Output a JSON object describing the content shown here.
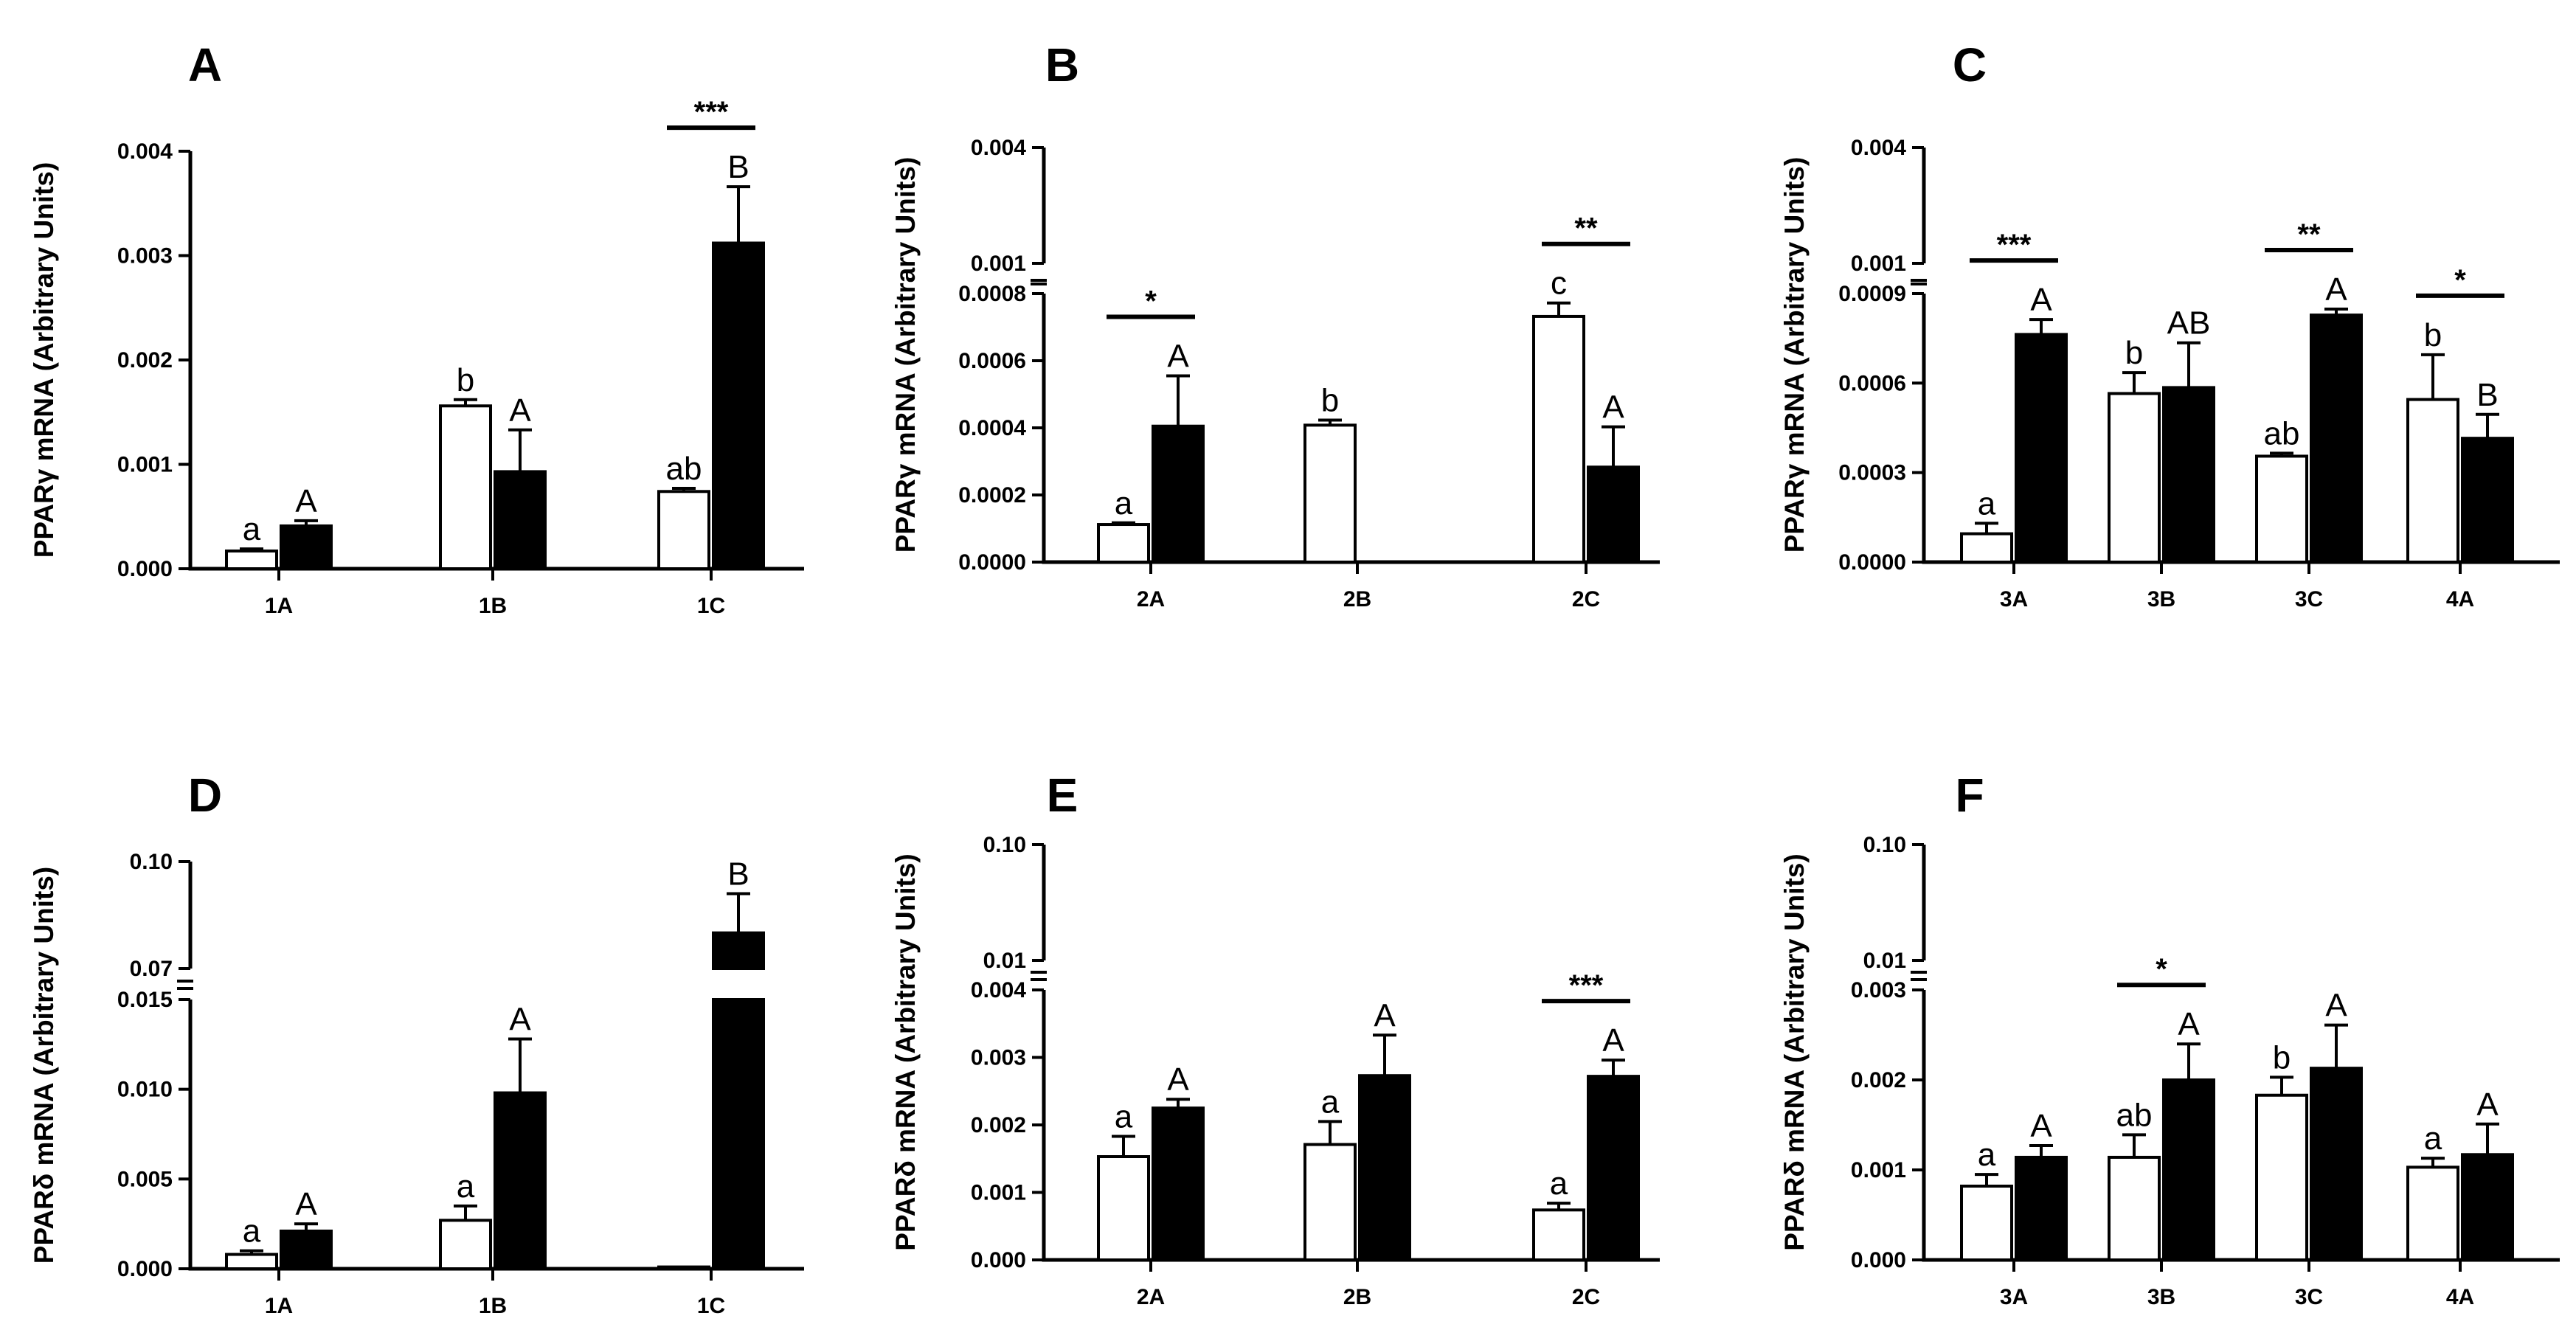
{
  "colors": {
    "control": "#ffffff",
    "treated": "#000000",
    "stroke": "#000000"
  },
  "chart_data": [
    {
      "type": "bar",
      "panel": "A",
      "ylabel": "PPARγ mRNA (Arbitrary Units)",
      "categories": [
        "1A",
        "1B",
        "1C"
      ],
      "series": [
        {
          "name": "open",
          "values": [
            0.00017,
            0.00156,
            0.00074
          ],
          "errors": [
            2e-05,
            6e-05,
            3e-05
          ],
          "labels": [
            "a",
            "b",
            "ab"
          ]
        },
        {
          "name": "filled",
          "values": [
            0.00041,
            0.00093,
            0.00312
          ],
          "errors": [
            5e-05,
            0.0004,
            0.00054
          ],
          "labels": [
            "A",
            "A",
            "B"
          ]
        }
      ],
      "ylim": [
        0,
        0.004
      ],
      "yticks": [
        {
          "v": 0,
          "l": "0.000"
        },
        {
          "v": 0.001,
          "l": "0.001"
        },
        {
          "v": 0.002,
          "l": "0.002"
        },
        {
          "v": 0.003,
          "l": "0.003"
        },
        {
          "v": 0.004,
          "l": "0.004"
        }
      ],
      "significance": [
        {
          "category": 2,
          "text": "***"
        }
      ]
    },
    {
      "type": "bar",
      "panel": "B",
      "ylabel": "PPARγ mRNA (Arbitrary Units)",
      "categories": [
        "2A",
        "2B",
        "2C"
      ],
      "series": [
        {
          "name": "open",
          "values": [
            0.000112,
            0.000408,
            0.000732
          ],
          "errors": [
            5e-06,
            1.5e-05,
            4e-05
          ],
          "labels": [
            "a",
            "b",
            "c"
          ]
        },
        {
          "name": "filled",
          "values": [
            0.000405,
            null,
            0.000283
          ],
          "errors": [
            0.00015,
            null,
            0.00012
          ],
          "labels": [
            "A",
            "",
            "A"
          ]
        }
      ],
      "ylim": [
        0,
        0.004
      ],
      "broken_axis": {
        "lower": [
          0,
          0.0008
        ],
        "upper": [
          0.001,
          0.004
        ]
      },
      "yticks": [
        {
          "v": 0,
          "l": "0.0000"
        },
        {
          "v": 0.0002,
          "l": "0.0002"
        },
        {
          "v": 0.0004,
          "l": "0.0004"
        },
        {
          "v": 0.0006,
          "l": "0.0006"
        },
        {
          "v": 0.0008,
          "l": "0.0008"
        },
        {
          "v": 0.001,
          "l": "0.001"
        },
        {
          "v": 0.004,
          "l": "0.004"
        }
      ],
      "significance": [
        {
          "category": 0,
          "text": "*"
        },
        {
          "category": 2,
          "text": "**"
        }
      ]
    },
    {
      "type": "bar",
      "panel": "C",
      "ylabel": "PPARγ mRNA (Arbitrary Units)",
      "categories": [
        "3A",
        "3B",
        "3C",
        "4A"
      ],
      "series": [
        {
          "name": "open",
          "values": [
            9.5e-05,
            0.000565,
            0.000355,
            0.000545
          ],
          "errors": [
            3.5e-05,
            7e-05,
            1e-05,
            0.00015
          ],
          "labels": [
            "a",
            "b",
            "ab",
            "b"
          ]
        },
        {
          "name": "filled",
          "values": [
            0.000763,
            0.000585,
            0.000828,
            0.000415
          ],
          "errors": [
            5e-05,
            0.00015,
            2e-05,
            8e-05
          ],
          "labels": [
            "A",
            "AB",
            "A",
            "B"
          ]
        }
      ],
      "ylim": [
        0,
        0.004
      ],
      "broken_axis": {
        "lower": [
          0,
          0.0009
        ],
        "upper": [
          0.001,
          0.004
        ]
      },
      "yticks": [
        {
          "v": 0,
          "l": "0.0000"
        },
        {
          "v": 0.0003,
          "l": "0.0003"
        },
        {
          "v": 0.0006,
          "l": "0.0006"
        },
        {
          "v": 0.0009,
          "l": "0.0009"
        },
        {
          "v": 0.001,
          "l": "0.001"
        },
        {
          "v": 0.004,
          "l": "0.004"
        }
      ],
      "significance": [
        {
          "category": 0,
          "text": "***"
        },
        {
          "category": 2,
          "text": "**"
        },
        {
          "category": 3,
          "text": "*"
        }
      ]
    },
    {
      "type": "bar",
      "panel": "D",
      "ylabel": "PPARδ mRNA (Arbitrary Units)",
      "categories": [
        "1A",
        "1B",
        "1C"
      ],
      "series": [
        {
          "name": "open",
          "values": [
            0.0008,
            0.0027,
            0.0001
          ],
          "errors": [
            0.0002,
            0.0008,
            0.0
          ],
          "labels": [
            "a",
            "a",
            ""
          ]
        },
        {
          "name": "filled",
          "values": [
            0.0021,
            0.0098,
            0.08
          ],
          "errors": [
            0.0004,
            0.003,
            0.011
          ],
          "labels": [
            "A",
            "A",
            "B"
          ]
        }
      ],
      "ylim": [
        0,
        0.1
      ],
      "broken_axis": {
        "lower": [
          0,
          0.015
        ],
        "upper": [
          0.07,
          0.1
        ]
      },
      "yticks": [
        {
          "v": 0,
          "l": "0.000"
        },
        {
          "v": 0.005,
          "l": "0.005"
        },
        {
          "v": 0.01,
          "l": "0.010"
        },
        {
          "v": 0.015,
          "l": "0.015"
        },
        {
          "v": 0.07,
          "l": "0.07"
        },
        {
          "v": 0.1,
          "l": "0.10"
        }
      ],
      "significance": []
    },
    {
      "type": "bar",
      "panel": "E",
      "ylabel": "PPARδ mRNA (Arbitrary Units)",
      "categories": [
        "2A",
        "2B",
        "2C"
      ],
      "series": [
        {
          "name": "open",
          "values": [
            0.00153,
            0.00171,
            0.00074
          ],
          "errors": [
            0.0003,
            0.00034,
            0.0001
          ],
          "labels": [
            "a",
            "a",
            "a"
          ]
        },
        {
          "name": "filled",
          "values": [
            0.00225,
            0.00273,
            0.00272
          ],
          "errors": [
            0.00013,
            0.0006,
            0.00024
          ],
          "labels": [
            "A",
            "A",
            "A"
          ]
        }
      ],
      "ylim": [
        0,
        0.1
      ],
      "broken_axis": {
        "lower": [
          0,
          0.004
        ],
        "upper": [
          0.01,
          0.1
        ]
      },
      "yticks": [
        {
          "v": 0,
          "l": "0.000"
        },
        {
          "v": 0.001,
          "l": "0.001"
        },
        {
          "v": 0.002,
          "l": "0.002"
        },
        {
          "v": 0.003,
          "l": "0.003"
        },
        {
          "v": 0.004,
          "l": "0.004"
        },
        {
          "v": 0.01,
          "l": "0.01"
        },
        {
          "v": 0.1,
          "l": "0.10"
        }
      ],
      "significance": [
        {
          "category": 2,
          "text": "***"
        }
      ]
    },
    {
      "type": "bar",
      "panel": "F",
      "ylabel": "PPARδ mRNA (Arbitrary Units)",
      "categories": [
        "3A",
        "3B",
        "3C",
        "4A"
      ],
      "series": [
        {
          "name": "open",
          "values": [
            0.00082,
            0.00114,
            0.00183,
            0.00103
          ],
          "errors": [
            0.00013,
            0.00025,
            0.0002,
            0.0001
          ],
          "labels": [
            "a",
            "ab",
            "b",
            "a"
          ]
        },
        {
          "name": "filled",
          "values": [
            0.00114,
            0.002,
            0.00213,
            0.00117
          ],
          "errors": [
            0.00013,
            0.0004,
            0.00048,
            0.00034
          ],
          "labels": [
            "A",
            "A",
            "A",
            "A"
          ]
        }
      ],
      "ylim": [
        0,
        0.1
      ],
      "broken_axis": {
        "lower": [
          0,
          0.003
        ],
        "upper": [
          0.01,
          0.1
        ]
      },
      "yticks": [
        {
          "v": 0,
          "l": "0.000"
        },
        {
          "v": 0.001,
          "l": "0.001"
        },
        {
          "v": 0.002,
          "l": "0.002"
        },
        {
          "v": 0.003,
          "l": "0.003"
        },
        {
          "v": 0.01,
          "l": "0.01"
        },
        {
          "v": 0.1,
          "l": "0.10"
        }
      ],
      "significance": [
        {
          "category": 1,
          "text": "*"
        }
      ]
    }
  ]
}
